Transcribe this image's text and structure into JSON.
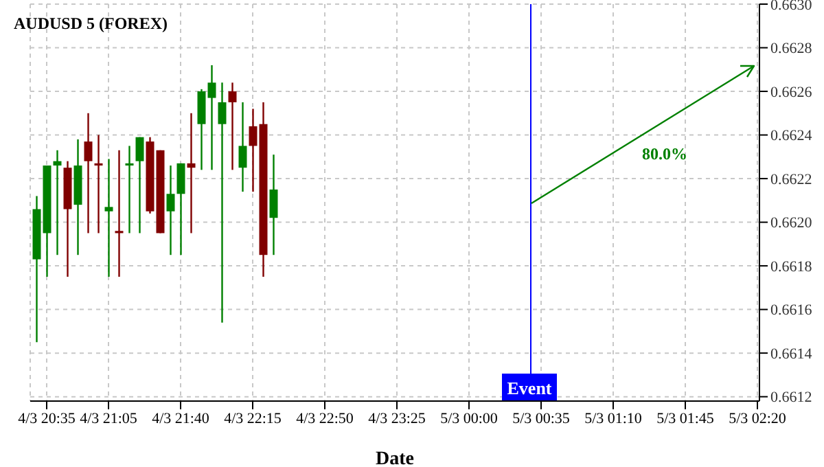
{
  "chart_data": {
    "type": "candlestick",
    "title": "AUDUSD 5 (FOREX)",
    "xlabel": "Date",
    "x": [
      "--03-04T20:30",
      "--03-04T20:35",
      "--03-04T20:40",
      "--03-04T20:45",
      "--03-04T20:50",
      "--03-04T20:55",
      "--03-04T21:00",
      "--03-04T21:05",
      "--03-04T21:10",
      "--03-04T21:15",
      "--03-04T21:20",
      "--03-04T21:25",
      "--03-04T21:30",
      "--03-04T21:35",
      "--03-04T21:40",
      "--03-04T21:45",
      "--03-04T21:50",
      "--03-04T21:55",
      "--03-04T22:00",
      "--03-04T22:05",
      "--03-04T22:10",
      "--03-04T22:15",
      "--03-04T22:20",
      "--03-04T22:25"
    ],
    "ohlc": [
      [
        0.66183,
        0.66212,
        0.66145,
        0.66206
      ],
      [
        0.66195,
        0.66226,
        0.66175,
        0.66226
      ],
      [
        0.66226,
        0.66233,
        0.66185,
        0.66228
      ],
      [
        0.66225,
        0.66228,
        0.66175,
        0.66206
      ],
      [
        0.66208,
        0.66238,
        0.66185,
        0.66226
      ],
      [
        0.66237,
        0.6625,
        0.66195,
        0.66228
      ],
      [
        0.66227,
        0.6624,
        0.66195,
        0.66226
      ],
      [
        0.66205,
        0.66229,
        0.66175,
        0.66207
      ],
      [
        0.66196,
        0.66233,
        0.66175,
        0.66195
      ],
      [
        0.66226,
        0.66235,
        0.66195,
        0.66227
      ],
      [
        0.66228,
        0.66239,
        0.66195,
        0.66239
      ],
      [
        0.66237,
        0.66239,
        0.66204,
        0.66205
      ],
      [
        0.66233,
        0.66233,
        0.66195,
        0.66195
      ],
      [
        0.66205,
        0.66226,
        0.66185,
        0.66213
      ],
      [
        0.66213,
        0.66227,
        0.66185,
        0.66227
      ],
      [
        0.66227,
        0.6625,
        0.66195,
        0.66225
      ],
      [
        0.66245,
        0.66261,
        0.66224,
        0.6626
      ],
      [
        0.66257,
        0.66272,
        0.66224,
        0.66264
      ],
      [
        0.66245,
        0.66264,
        0.66154,
        0.66255
      ],
      [
        0.6626,
        0.66264,
        0.66224,
        0.66255
      ],
      [
        0.66225,
        0.66255,
        0.66214,
        0.66235
      ],
      [
        0.66244,
        0.66252,
        0.66214,
        0.66235
      ],
      [
        0.66245,
        0.66255,
        0.66175,
        0.66185
      ],
      [
        0.66202,
        0.66231,
        0.66185,
        0.66215
      ]
    ],
    "colors": [
      "#008000",
      "#008000",
      "#008000",
      "#800000",
      "#008000",
      "#800000",
      "#800000",
      "#008000",
      "#800000",
      "#008000",
      "#008000",
      "#800000",
      "#800000",
      "#008000",
      "#008000",
      "#800000",
      "#008000",
      "#008000",
      "#008000",
      "#800000",
      "#008000",
      "#800000",
      "#800000",
      "#008000"
    ],
    "xlim": [
      "--03-04T20:27",
      "--03-05T02:21"
    ],
    "xticks": [
      {
        "value": "--03-04T20:35",
        "label": "4/3 20:35"
      },
      {
        "value": "--03-04T21:05",
        "label": "4/3 21:05"
      },
      {
        "value": "--03-04T21:40",
        "label": "4/3 21:40"
      },
      {
        "value": "--03-04T22:15",
        "label": "4/3 22:15"
      },
      {
        "value": "--03-04T22:50",
        "label": "4/3 22:50"
      },
      {
        "value": "--03-04T23:25",
        "label": "4/3 23:25"
      },
      {
        "value": "--03-05T00:00",
        "label": "5/3 00:00"
      },
      {
        "value": "--03-05T00:35",
        "label": "5/3 00:35"
      },
      {
        "value": "--03-05T01:10",
        "label": "5/3 01:10"
      },
      {
        "value": "--03-05T01:45",
        "label": "5/3 01:45"
      },
      {
        "value": "--03-05T02:20",
        "label": "5/3 02:20"
      }
    ],
    "ylim": [
      0.66118,
      0.663
    ],
    "yticks": [
      0.6612,
      0.6614,
      0.6616,
      0.6618,
      {
        "value": 0.662,
        "label": "0.6620"
      },
      0.6622,
      0.6624,
      0.6626,
      0.6628,
      {
        "value": 0.663,
        "label": "0.6630"
      }
    ],
    "grid": true,
    "ref_lines": [
      {
        "axis": "x",
        "value": "--03-05T00:30",
        "label": "Event",
        "color": "#0000ff"
      }
    ],
    "annotations": [
      "80.0%"
    ]
  }
}
